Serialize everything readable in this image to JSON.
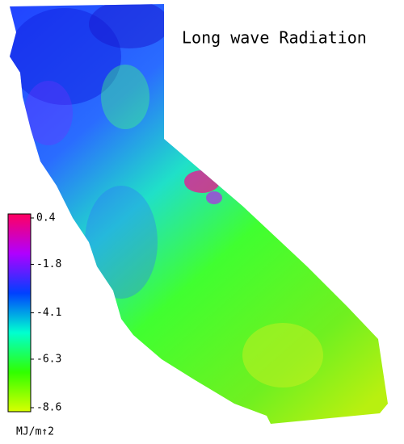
{
  "title": "Long wave Radiation",
  "colorbar": {
    "lim": [
      -8.6,
      0.4
    ],
    "ticks": [
      0.4,
      -1.8,
      -4.1,
      -6.3,
      -8.6
    ],
    "colors": [
      "#d8ff00",
      "#30ff00",
      "#00ffd0",
      "#0040ff",
      "#b000ff",
      "#ff0060"
    ],
    "unit": "MJ/m↑2"
  }
}
